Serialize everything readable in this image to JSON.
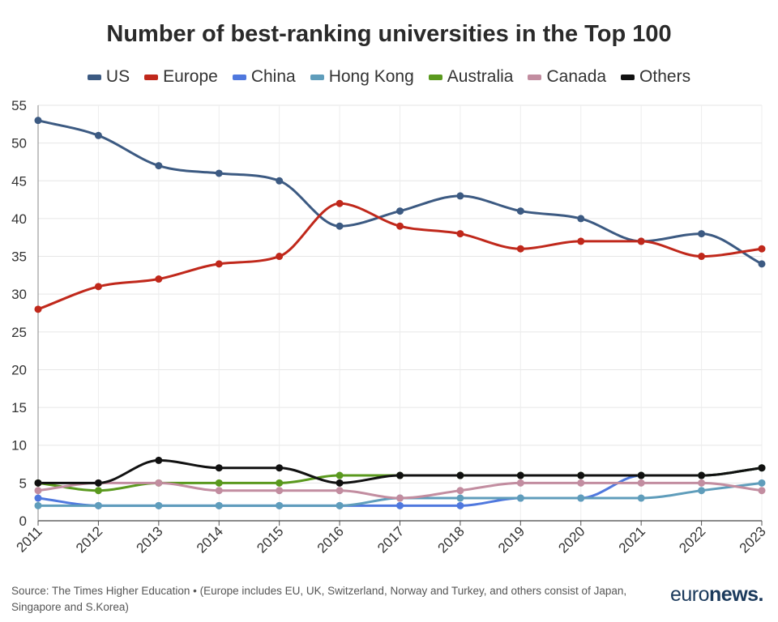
{
  "chart_data": {
    "type": "line",
    "title": "Number of best-ranking universities in the Top 100",
    "x": [
      "2011",
      "2012",
      "2013",
      "2014",
      "2015",
      "2016",
      "2017",
      "2018",
      "2019",
      "2020",
      "2021",
      "2022",
      "2023"
    ],
    "ylim": [
      0,
      55
    ],
    "yticks": [
      0,
      5,
      10,
      15,
      20,
      25,
      30,
      35,
      40,
      45,
      50,
      55
    ],
    "grid": true,
    "legend_position": "top",
    "series": [
      {
        "name": "US",
        "color": "#3c5a82",
        "values": [
          53,
          51,
          47,
          46,
          45,
          39,
          41,
          43,
          41,
          40,
          37,
          38,
          34
        ]
      },
      {
        "name": "Europe",
        "color": "#c0281b",
        "values": [
          28,
          31,
          32,
          34,
          35,
          42,
          39,
          38,
          36,
          37,
          37,
          35,
          36
        ]
      },
      {
        "name": "China",
        "color": "#4f78de",
        "values": [
          3,
          2,
          2,
          2,
          2,
          2,
          2,
          2,
          3,
          3,
          6,
          6,
          7
        ]
      },
      {
        "name": "Hong Kong",
        "color": "#5f9dbb",
        "values": [
          2,
          2,
          2,
          2,
          2,
          2,
          3,
          3,
          3,
          3,
          3,
          4,
          5
        ]
      },
      {
        "name": "Australia",
        "color": "#5a991e",
        "values": [
          5,
          4,
          5,
          5,
          5,
          6,
          6,
          6,
          6,
          6,
          6,
          6,
          7
        ]
      },
      {
        "name": "Canada",
        "color": "#c28da0",
        "values": [
          4,
          5,
          5,
          4,
          4,
          4,
          3,
          4,
          5,
          5,
          5,
          5,
          4
        ]
      },
      {
        "name": "Others",
        "color": "#111111",
        "values": [
          5,
          5,
          8,
          7,
          7,
          5,
          6,
          6,
          6,
          6,
          6,
          6,
          7
        ]
      }
    ]
  },
  "footer": {
    "source": "Source: The Times Higher Education • (Europe includes EU, UK, Switzerland, Norway and Turkey, and others consist of Japan, Singapore and S.Korea)",
    "brand_light": "euro",
    "brand_bold": "news."
  }
}
